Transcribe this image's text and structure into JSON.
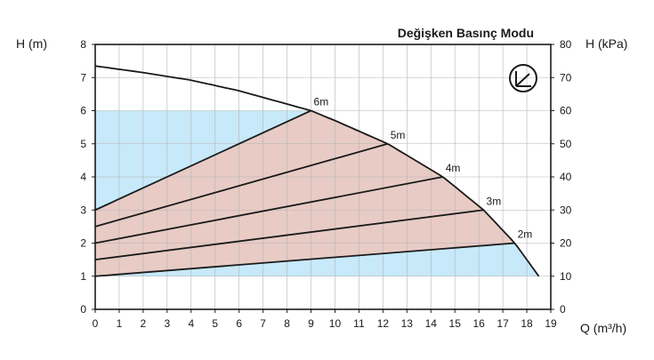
{
  "chart_data": {
    "type": "line",
    "title": "Değişken Basınç Modu",
    "xlabel": "Q (m³/h)",
    "ylabel_left": "H (m)",
    "ylabel_right": "H (kPa)",
    "xlim": [
      0,
      19
    ],
    "ylim_left": [
      0,
      8
    ],
    "ylim_right": [
      0,
      80
    ],
    "x_ticks": [
      "0",
      "1",
      "2",
      "3",
      "4",
      "5",
      "6",
      "7",
      "8",
      "9",
      "10",
      "11",
      "12",
      "13",
      "14",
      "15",
      "16",
      "17",
      "18",
      "19"
    ],
    "y_left_ticks": [
      "0",
      "1",
      "2",
      "3",
      "4",
      "5",
      "6",
      "7",
      "8"
    ],
    "y_right_ticks": [
      "0",
      "10",
      "20",
      "30",
      "40",
      "50",
      "60",
      "70",
      "80"
    ],
    "grid": true,
    "colors": {
      "frame": "#1a1a1a",
      "grid": "#b4b4b4",
      "operating_region": "#c7e9fa",
      "control_region": "#e8cbc5",
      "curve": "#1a1a1a"
    },
    "max_curve": {
      "x": [
        0,
        2,
        4,
        6,
        8,
        9,
        10,
        12.2,
        14.5,
        16.2,
        17.5,
        18.5
      ],
      "y": [
        7.35,
        7.15,
        6.92,
        6.6,
        6.2,
        6.0,
        5.7,
        5.0,
        4.0,
        3.0,
        2.0,
        1.0
      ]
    },
    "operating_region": {
      "x": [
        0,
        9,
        0,
        0,
        17.5,
        18.5,
        0
      ],
      "y": [
        6,
        6,
        3,
        1,
        2,
        1,
        1
      ]
    },
    "series": [
      {
        "name": "6m",
        "x": [
          0,
          9
        ],
        "y": [
          3.0,
          6.0
        ]
      },
      {
        "name": "5m",
        "x": [
          0,
          12.2
        ],
        "y": [
          2.5,
          5.0
        ]
      },
      {
        "name": "4m",
        "x": [
          0,
          14.5
        ],
        "y": [
          2.0,
          4.0
        ]
      },
      {
        "name": "3m",
        "x": [
          0,
          16.2
        ],
        "y": [
          1.5,
          3.0
        ]
      },
      {
        "name": "2m",
        "x": [
          0,
          17.5
        ],
        "y": [
          1.0,
          2.0
        ]
      }
    ],
    "mode_icon": "proportional-pressure-icon"
  }
}
